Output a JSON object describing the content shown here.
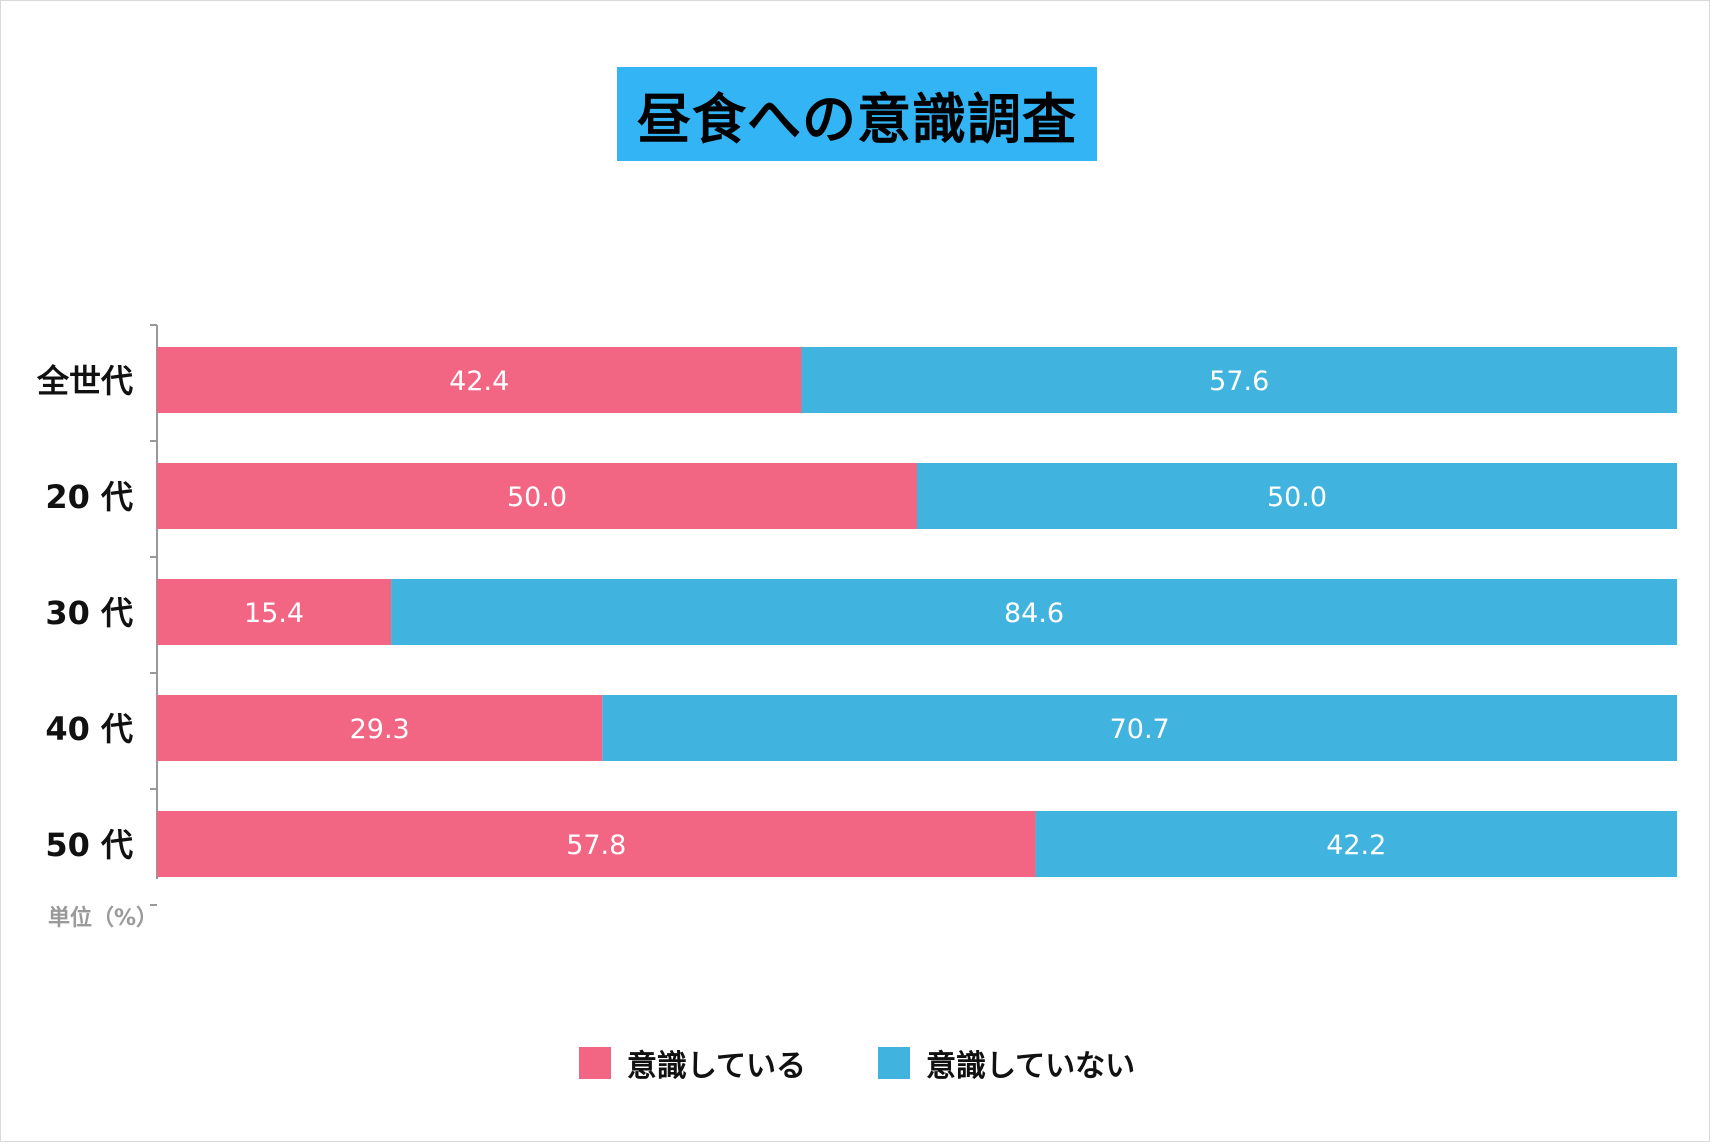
{
  "chart_data": {
    "type": "bar",
    "orientation": "horizontal",
    "stacked": true,
    "title": "昼食への意識調査",
    "unit_label": "単位（%）",
    "categories": [
      "全世代",
      "20 代",
      "30 代",
      "40 代",
      "50 代"
    ],
    "series": [
      {
        "name": "意識している",
        "color": "#f26583",
        "values": [
          42.4,
          50.0,
          15.4,
          29.3,
          57.8
        ]
      },
      {
        "name": "意識していない",
        "color": "#40b3de",
        "values": [
          57.6,
          50.0,
          84.6,
          70.7,
          42.2
        ]
      }
    ],
    "xlim": [
      0,
      100
    ],
    "grid": false,
    "legend_position": "bottom"
  }
}
